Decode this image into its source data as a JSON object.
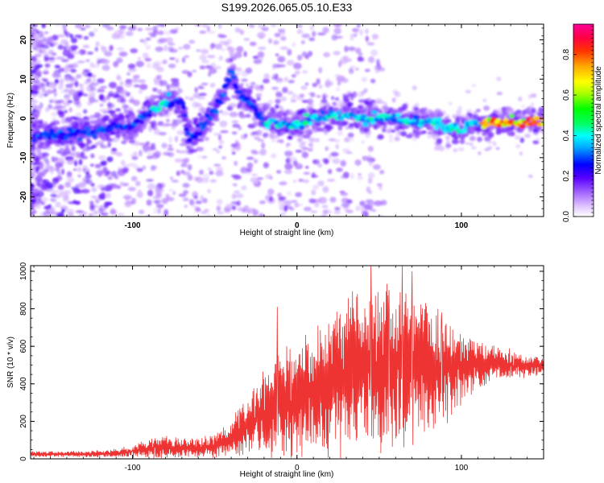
{
  "title": "S199.2026.065.05.10.E33",
  "chart_data": [
    {
      "type": "heatmap",
      "name": "spectrogram",
      "xlabel": "Height of straight line (km)",
      "ylabel": "Frequency (Hz)",
      "xlim": [
        -162,
        150
      ],
      "ylim": [
        -25,
        24
      ],
      "xticks": [
        "-100",
        "0",
        "100"
      ],
      "xtick_values": [
        -100,
        0,
        100
      ],
      "yticks": [
        "20",
        "10",
        "0",
        "-10",
        "-20"
      ],
      "ytick_values": [
        20,
        10,
        0,
        -10,
        -20
      ],
      "ridge_points": [
        {
          "x": -160,
          "y": -5
        },
        {
          "x": -140,
          "y": -4
        },
        {
          "x": -120,
          "y": -3
        },
        {
          "x": -110,
          "y": -2
        },
        {
          "x": -100,
          "y": -2
        },
        {
          "x": -90,
          "y": 2
        },
        {
          "x": -80,
          "y": 4
        },
        {
          "x": -70,
          "y": 5
        },
        {
          "x": -66,
          "y": -6
        },
        {
          "x": -55,
          "y": -1
        },
        {
          "x": -45,
          "y": 6
        },
        {
          "x": -40,
          "y": 12
        },
        {
          "x": -35,
          "y": 6
        },
        {
          "x": -30,
          "y": 5
        },
        {
          "x": -20,
          "y": -1
        },
        {
          "x": -10,
          "y": -1
        },
        {
          "x": 0,
          "y": -2
        },
        {
          "x": 10,
          "y": 0
        },
        {
          "x": 20,
          "y": 1
        },
        {
          "x": 30,
          "y": 1
        },
        {
          "x": 40,
          "y": 0
        },
        {
          "x": 50,
          "y": 0
        },
        {
          "x": 60,
          "y": 0
        },
        {
          "x": 70,
          "y": -1
        },
        {
          "x": 80,
          "y": -1
        },
        {
          "x": 90,
          "y": -2
        },
        {
          "x": 100,
          "y": -3
        },
        {
          "x": 110,
          "y": -1
        },
        {
          "x": 120,
          "y": -1
        },
        {
          "x": 130,
          "y": -1
        },
        {
          "x": 140,
          "y": -1
        },
        {
          "x": 150,
          "y": 0
        }
      ]
    },
    {
      "type": "colorbar",
      "name": "colorbar",
      "label": "Normalized spectral amplitude",
      "ylim": [
        0,
        0.95
      ],
      "ticks": [
        "0.0",
        "0.2",
        "0.4",
        "0.6",
        "0.8"
      ],
      "tick_values": [
        0.0,
        0.2,
        0.4,
        0.6,
        0.8
      ]
    },
    {
      "type": "line",
      "name": "snr",
      "xlabel": "Height of straight line (km)",
      "ylabel": "SNR (10 * v/v)",
      "xlim": [
        -162,
        150
      ],
      "ylim": [
        0,
        1030
      ],
      "xticks": [
        "-100",
        "0",
        "100"
      ],
      "xtick_values": [
        -100,
        0,
        100
      ],
      "yticks": [
        "0",
        "200",
        "400",
        "600",
        "800",
        "1000"
      ],
      "ytick_values": [
        0,
        200,
        400,
        600,
        800,
        1000
      ],
      "color": "#ee3333",
      "envelope": [
        {
          "x": -162,
          "mean": 25,
          "amp": 15
        },
        {
          "x": -130,
          "mean": 25,
          "amp": 15
        },
        {
          "x": -110,
          "mean": 30,
          "amp": 20
        },
        {
          "x": -95,
          "mean": 45,
          "amp": 40
        },
        {
          "x": -80,
          "mean": 60,
          "amp": 60
        },
        {
          "x": -60,
          "mean": 55,
          "amp": 50
        },
        {
          "x": -50,
          "mean": 70,
          "amp": 60
        },
        {
          "x": -40,
          "mean": 110,
          "amp": 90
        },
        {
          "x": -30,
          "mean": 180,
          "amp": 160
        },
        {
          "x": -20,
          "mean": 240,
          "amp": 220
        },
        {
          "x": -10,
          "mean": 300,
          "amp": 260
        },
        {
          "x": 0,
          "mean": 330,
          "amp": 300
        },
        {
          "x": 10,
          "mean": 380,
          "amp": 330
        },
        {
          "x": 20,
          "mean": 420,
          "amp": 360
        },
        {
          "x": 30,
          "mean": 450,
          "amp": 380
        },
        {
          "x": 40,
          "mean": 480,
          "amp": 400
        },
        {
          "x": 50,
          "mean": 490,
          "amp": 420
        },
        {
          "x": 60,
          "mean": 500,
          "amp": 420
        },
        {
          "x": 70,
          "mean": 500,
          "amp": 400
        },
        {
          "x": 80,
          "mean": 490,
          "amp": 350
        },
        {
          "x": 90,
          "mean": 480,
          "amp": 280
        },
        {
          "x": 100,
          "mean": 490,
          "amp": 200
        },
        {
          "x": 110,
          "mean": 500,
          "amp": 120
        },
        {
          "x": 120,
          "mean": 510,
          "amp": 90
        },
        {
          "x": 130,
          "mean": 500,
          "amp": 70
        },
        {
          "x": 140,
          "mean": 500,
          "amp": 60
        },
        {
          "x": 150,
          "mean": 500,
          "amp": 50
        }
      ],
      "spikes": [
        {
          "x": -12,
          "y": 810
        },
        {
          "x": 45,
          "y": 1030
        },
        {
          "x": 64,
          "y": 1030
        },
        {
          "x": 70,
          "y": 1000
        },
        {
          "x": 88,
          "y": 780
        },
        {
          "x": 56,
          "y": 900
        }
      ]
    }
  ]
}
